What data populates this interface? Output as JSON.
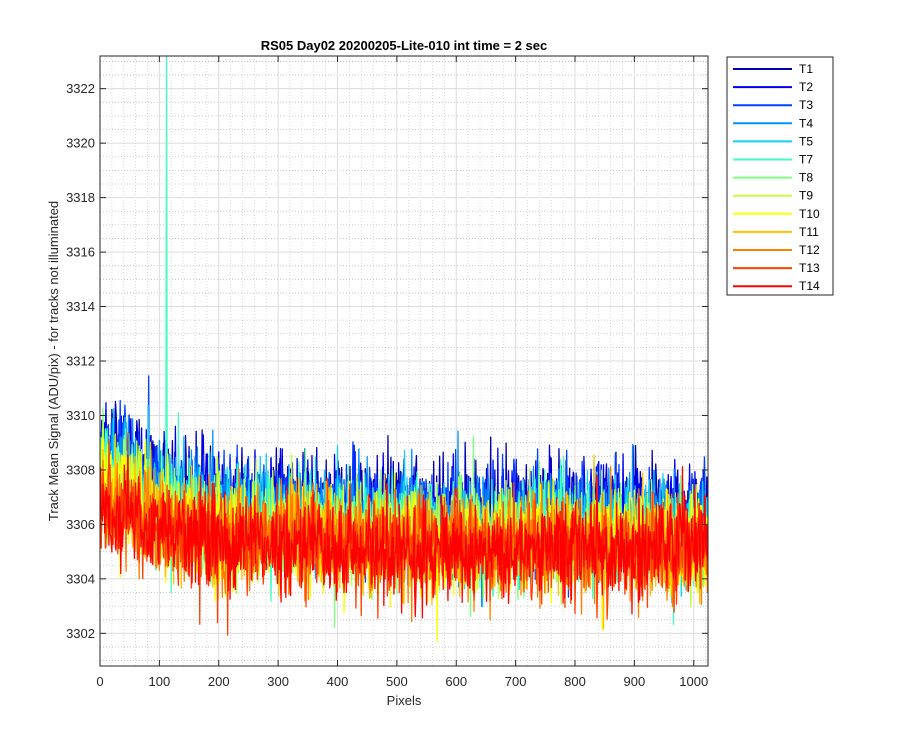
{
  "chart_data": {
    "type": "line",
    "title": "RS05 Day02 20200205-Lite-010 int time = 2 sec",
    "xlabel": "Pixels",
    "ylabel": "Track Mean Signal (ADU/pix) - for tracks not illuminated",
    "xlim": [
      0,
      1024
    ],
    "ylim": [
      3300.8,
      3323.2
    ],
    "xticks": [
      0,
      100,
      200,
      300,
      400,
      500,
      600,
      700,
      800,
      900,
      1000
    ],
    "yticks": [
      3302,
      3304,
      3306,
      3308,
      3310,
      3312,
      3314,
      3316,
      3318,
      3320,
      3322
    ],
    "x_points": 1024,
    "grid": true,
    "minor_grid": true,
    "legend_position": "outside-right",
    "series": [
      {
        "name": "T1",
        "color": "#0000B3",
        "mean": 3306.5,
        "spread": 0.85,
        "pattern": [
          3309.2,
          3307.8,
          3307.0,
          3306.9,
          3306.8,
          3306.7,
          3306.7,
          3306.6,
          3306.6,
          3306.6,
          3306.5
        ]
      },
      {
        "name": "T2",
        "color": "#0000EE",
        "mean": 3306.3,
        "spread": 0.85,
        "pattern": [
          3309.0,
          3307.6,
          3306.8,
          3306.7,
          3306.6,
          3306.5,
          3306.5,
          3306.4,
          3306.4,
          3306.4,
          3306.3
        ]
      },
      {
        "name": "T3",
        "color": "#0040FF",
        "mean": 3306.2,
        "spread": 0.85,
        "pattern": [
          3308.8,
          3307.4,
          3306.7,
          3306.6,
          3306.5,
          3306.4,
          3306.4,
          3306.3,
          3306.3,
          3306.3,
          3306.2
        ]
      },
      {
        "name": "T4",
        "color": "#0090FF",
        "mean": 3306.0,
        "spread": 0.85,
        "pattern": [
          3308.6,
          3307.2,
          3306.5,
          3306.4,
          3306.3,
          3306.2,
          3306.2,
          3306.1,
          3306.1,
          3306.1,
          3306.0
        ]
      },
      {
        "name": "T5",
        "color": "#10D0F0",
        "mean": 3305.8,
        "spread": 0.9,
        "pattern": [
          3308.4,
          3307.0,
          3306.3,
          3306.2,
          3306.1,
          3306.0,
          3306.0,
          3305.9,
          3305.9,
          3305.9,
          3305.8
        ]
      },
      {
        "name": "T7",
        "color": "#40FFC0",
        "mean": 3305.6,
        "spread": 0.9,
        "pattern": [
          3308.2,
          3306.8,
          3306.1,
          3306.0,
          3305.9,
          3305.8,
          3305.8,
          3305.7,
          3305.7,
          3305.7,
          3305.6
        ],
        "spike": {
          "x": 112,
          "y": 3323.2
        }
      },
      {
        "name": "T8",
        "color": "#80FF80",
        "mean": 3305.4,
        "spread": 0.9,
        "pattern": [
          3307.8,
          3306.6,
          3305.9,
          3305.8,
          3305.7,
          3305.6,
          3305.6,
          3305.5,
          3305.5,
          3305.5,
          3305.4
        ]
      },
      {
        "name": "T9",
        "color": "#C0FF40",
        "mean": 3305.3,
        "spread": 0.9,
        "pattern": [
          3307.6,
          3306.4,
          3305.8,
          3305.7,
          3305.6,
          3305.5,
          3305.5,
          3305.4,
          3305.4,
          3305.4,
          3305.3
        ]
      },
      {
        "name": "T10",
        "color": "#FFFF00",
        "mean": 3305.2,
        "spread": 0.9,
        "pattern": [
          3307.4,
          3306.2,
          3305.7,
          3305.6,
          3305.5,
          3305.4,
          3305.4,
          3305.3,
          3305.3,
          3305.3,
          3305.2
        ]
      },
      {
        "name": "T11",
        "color": "#FFC000",
        "mean": 3305.1,
        "spread": 0.9,
        "pattern": [
          3307.2,
          3306.0,
          3305.6,
          3305.5,
          3305.4,
          3305.3,
          3305.3,
          3305.2,
          3305.2,
          3305.2,
          3305.1
        ]
      },
      {
        "name": "T12",
        "color": "#FF8000",
        "mean": 3305.1,
        "spread": 0.9,
        "pattern": [
          3307.0,
          3305.9,
          3305.5,
          3305.4,
          3305.3,
          3305.2,
          3305.2,
          3305.1,
          3305.1,
          3305.1,
          3305.1
        ]
      },
      {
        "name": "T13",
        "color": "#FF4000",
        "mean": 3305.1,
        "spread": 0.9,
        "pattern": [
          3306.8,
          3305.8,
          3305.4,
          3305.3,
          3305.2,
          3305.2,
          3305.1,
          3305.1,
          3305.1,
          3305.1,
          3305.1
        ]
      },
      {
        "name": "T14",
        "color": "#FF0000",
        "mean": 3305.1,
        "spread": 0.9,
        "pattern": [
          3306.6,
          3305.7,
          3305.3,
          3305.2,
          3305.2,
          3305.1,
          3305.1,
          3305.1,
          3305.1,
          3305.1,
          3305.1
        ]
      }
    ]
  }
}
